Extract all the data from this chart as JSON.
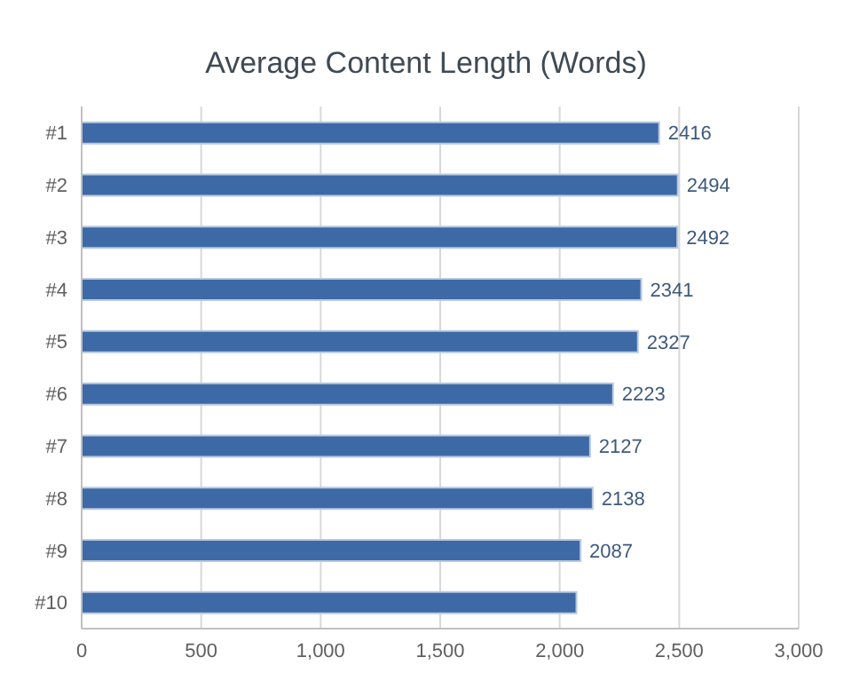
{
  "chart_data": {
    "type": "bar",
    "orientation": "horizontal",
    "title": "Average Content Length (Words)",
    "categories": [
      "#1",
      "#2",
      "#3",
      "#4",
      "#5",
      "#6",
      "#7",
      "#8",
      "#9",
      "#10"
    ],
    "values": [
      2416,
      2494,
      2492,
      2341,
      2327,
      2223,
      2127,
      2138,
      2087,
      2070
    ],
    "value_labels": [
      "2416",
      "2494",
      "2492",
      "2341",
      "2327",
      "2223",
      "2127",
      "2138",
      "2087",
      null
    ],
    "color": "#3d6aa6",
    "xlim": [
      0,
      3000
    ],
    "xticks": [
      {
        "value": 0,
        "label": "0"
      },
      {
        "value": 500,
        "label": "500"
      },
      {
        "value": 1000,
        "label": "1,000"
      },
      {
        "value": 1500,
        "label": "1,500"
      },
      {
        "value": 2000,
        "label": "2,000"
      },
      {
        "value": 2500,
        "label": "2,500"
      },
      {
        "value": 3000,
        "label": "3,000"
      }
    ],
    "grid": "x"
  }
}
